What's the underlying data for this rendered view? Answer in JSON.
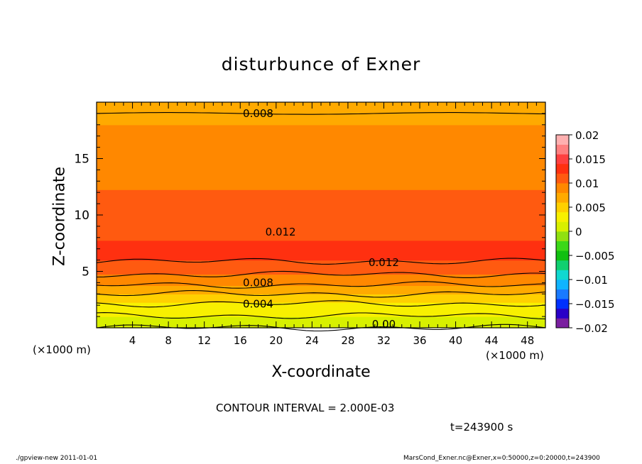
{
  "chart_data": {
    "type": "heatmap",
    "title": "disturbunce of Exner",
    "xlabel": "X-coordinate",
    "ylabel": "Z-coordinate",
    "x_unit": "(×1000 m)",
    "xlim": [
      0,
      50
    ],
    "ylim": [
      0,
      20
    ],
    "x_ticks": [
      "4",
      "8",
      "12",
      "16",
      "20",
      "24",
      "28",
      "32",
      "36",
      "40",
      "44",
      "48"
    ],
    "y_ticks": [
      "5",
      "10",
      "15"
    ],
    "colorbar": {
      "ticks": [
        "0.02",
        "0.015",
        "0.01",
        "0.005",
        "0",
        "−0.005",
        "−0.01",
        "−0.015",
        "−0.02"
      ],
      "range": [
        -0.02,
        0.02
      ],
      "colors": [
        "#7a1fa0",
        "#2a00c8",
        "#0030ff",
        "#1a7aff",
        "#10b4ff",
        "#10d8d0",
        "#10d070",
        "#10c010",
        "#3cd818",
        "#90e010",
        "#d8f000",
        "#f8f000",
        "#ffd000",
        "#ffaa00",
        "#ff8800",
        "#ff5a10",
        "#ff3010",
        "#ff4040",
        "#ff8080",
        "#ffb0b0"
      ]
    },
    "field_profile": {
      "z": [
        0,
        0.8,
        1.6,
        2.4,
        3.0,
        3.6,
        4.2,
        5.0,
        6.0,
        7.0,
        8.0,
        9.0,
        10.0,
        11.0,
        12.0,
        13.0,
        14.0,
        15.0,
        16.0,
        17.0,
        18.0,
        19.0,
        20.0
      ],
      "value": [
        0.0,
        0.0015,
        0.003,
        0.0045,
        0.006,
        0.0075,
        0.009,
        0.0105,
        0.0122,
        0.0125,
        0.0118,
        0.0112,
        0.0108,
        0.0104,
        0.0101,
        0.0098,
        0.0094,
        0.009,
        0.0086,
        0.0083,
        0.008,
        0.0078,
        0.0076
      ]
    },
    "contour_labels": [
      "0.008",
      "0.012",
      "0.012",
      "0.008",
      "0.004",
      "0.00"
    ],
    "contour_interval": "CONTOUR INTERVAL = 2.000E-03",
    "time": "t=243900 s"
  },
  "footer": {
    "left": "./gpview-new  2011-01-01",
    "right": "MarsCond_Exner.nc@Exner,x=0:50000,z=0:20000,t=243900"
  }
}
